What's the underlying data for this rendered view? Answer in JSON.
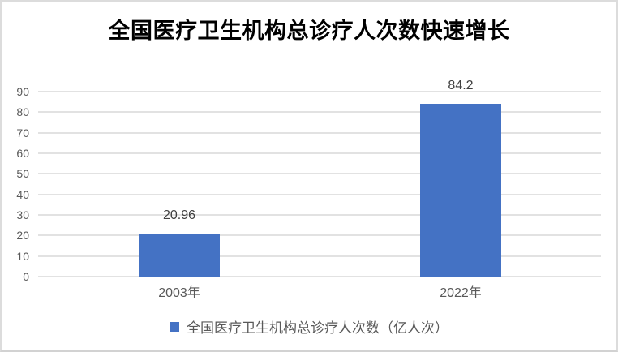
{
  "chart_data": {
    "type": "bar",
    "title": "全国医疗卫生机构总诊疗人次数快速增长",
    "categories": [
      "2003年",
      "2022年"
    ],
    "series": [
      {
        "name": "全国医疗卫生机构总诊疗人次数（亿人次）",
        "values": [
          20.96,
          84.2
        ]
      }
    ],
    "data_labels": [
      "20.96",
      "84.2"
    ],
    "xlabel": "",
    "ylabel": "",
    "ylim": [
      0,
      90
    ],
    "yticks": [
      0,
      10,
      20,
      30,
      40,
      50,
      60,
      70,
      80,
      90
    ],
    "grid": true,
    "legend_position": "bottom"
  },
  "colors": {
    "bar": "#4472C4",
    "gridline": "#E2E2E2",
    "axis_text": "#595959",
    "data_label_text": "#404040",
    "title_text": "#000000",
    "border": "#DCDCDC",
    "background": "#FFFFFF"
  }
}
